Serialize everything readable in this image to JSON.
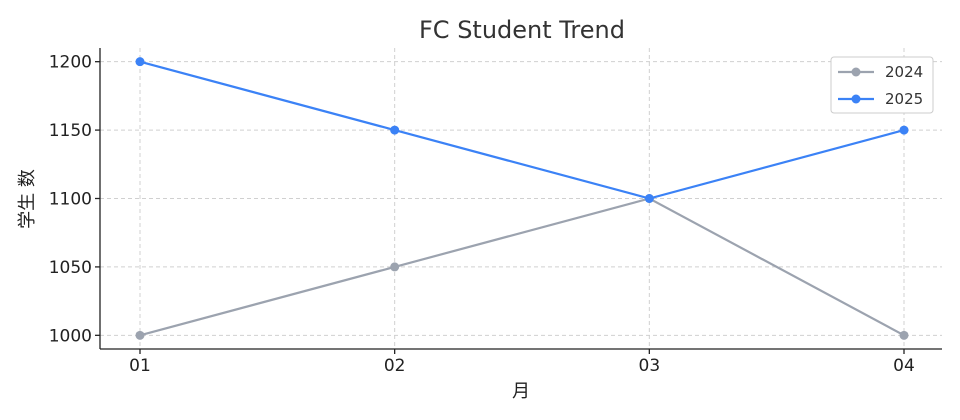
{
  "chart_data": {
    "type": "line",
    "title": "FC Student Trend",
    "xlabel": "月",
    "ylabel": "学生 数",
    "categories": [
      "01",
      "02",
      "03",
      "04"
    ],
    "ylim": [
      990,
      1210
    ],
    "yticks": [
      1000,
      1050,
      1100,
      1150,
      1200
    ],
    "grid": true,
    "legend_position": "top-right",
    "series": [
      {
        "name": "2024",
        "color": "#9ca3af",
        "values": [
          1000,
          1050,
          1100,
          1000
        ]
      },
      {
        "name": "2025",
        "color": "#3b82f6",
        "values": [
          1200,
          1150,
          1100,
          1150
        ]
      }
    ]
  }
}
